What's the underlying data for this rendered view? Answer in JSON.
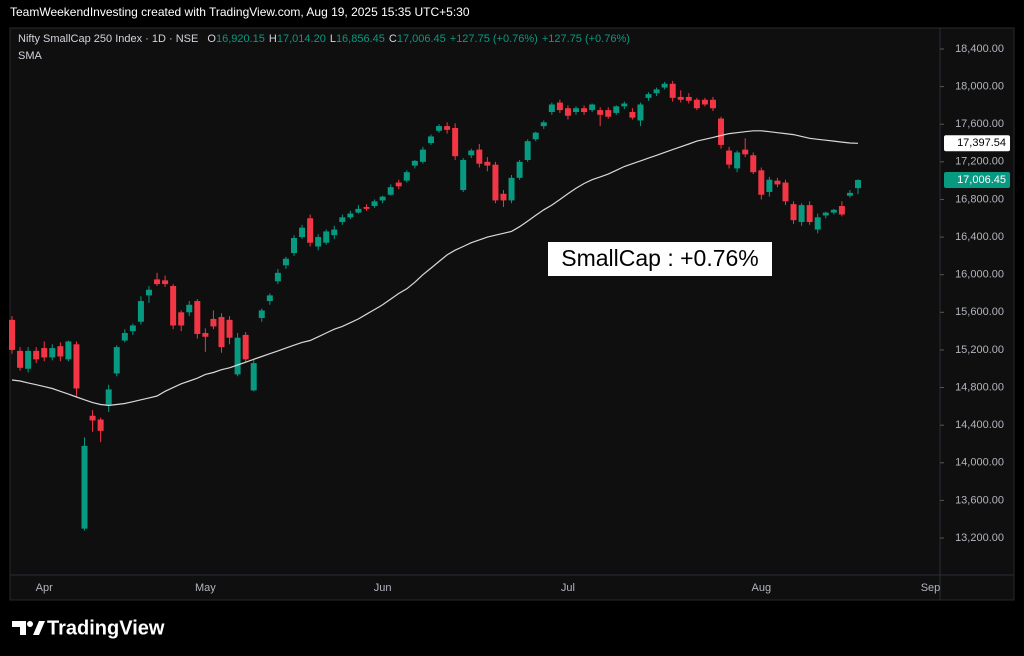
{
  "top_bar": "TeamWeekendInvesting created with TradingView.com, Aug 19, 2025 15:35 UTC+5:30",
  "header": {
    "symbol": "Nifty SmallCap 250 Index · 1D · NSE",
    "ohlc": [
      {
        "key": "O",
        "value": "16,920.15"
      },
      {
        "key": "H",
        "value": "17,014.20"
      },
      {
        "key": "L",
        "value": "16,856.45"
      },
      {
        "key": "C",
        "value": "17,006.45"
      }
    ],
    "changes": [
      "+127.75 (+0.76%)",
      "+127.75 (+0.76%)"
    ]
  },
  "logo": "TradingView",
  "chart_data": {
    "type": "candlestick",
    "up_color": "#089981",
    "down_color": "#f23645",
    "ylim": [
      12807,
      18623
    ],
    "yticks": [
      {
        "value": 13200,
        "label": "13,200.00"
      },
      {
        "value": 13600,
        "label": "13,600.00"
      },
      {
        "value": 14000,
        "label": "14,000.00"
      },
      {
        "value": 14400,
        "label": "14,400.00"
      },
      {
        "value": 14800,
        "label": "14,800.00"
      },
      {
        "value": 15200,
        "label": "15,200.00"
      },
      {
        "value": 15600,
        "label": "15,600.00"
      },
      {
        "value": 16000,
        "label": "16,000.00"
      },
      {
        "value": 16400,
        "label": "16,400.00"
      },
      {
        "value": 16800,
        "label": "16,800.00"
      },
      {
        "value": 17200,
        "label": "17,200.00"
      },
      {
        "value": 17600,
        "label": "17,600.00"
      },
      {
        "value": 18000,
        "label": "18,000.00"
      },
      {
        "value": 18400,
        "label": "18,400.00"
      }
    ],
    "categories": [
      null,
      null,
      null,
      null,
      "Apr",
      null,
      null,
      null,
      null,
      null,
      null,
      null,
      null,
      null,
      null,
      null,
      null,
      null,
      null,
      null,
      null,
      null,
      null,
      null,
      "May",
      null,
      null,
      null,
      null,
      null,
      null,
      null,
      null,
      null,
      null,
      null,
      null,
      null,
      null,
      null,
      null,
      null,
      null,
      null,
      null,
      null,
      "Jun",
      null,
      null,
      null,
      null,
      null,
      null,
      null,
      null,
      null,
      null,
      null,
      null,
      null,
      null,
      null,
      null,
      null,
      null,
      null,
      null,
      null,
      null,
      "Jul",
      null,
      null,
      null,
      null,
      null,
      null,
      null,
      null,
      null,
      null,
      null,
      null,
      null,
      null,
      null,
      null,
      null,
      null,
      null,
      null,
      null,
      null,
      null,
      "Aug",
      null,
      null,
      null,
      null,
      null,
      null,
      null,
      null,
      null,
      null,
      null,
      null,
      null,
      null,
      null,
      null,
      null,
      null,
      null,
      null,
      "Sep"
    ],
    "candles": [
      [
        15520,
        15560,
        15160,
        15200
      ],
      [
        15190,
        15230,
        14980,
        15010
      ],
      [
        15000,
        15230,
        14960,
        15190
      ],
      [
        15190,
        15230,
        15060,
        15100
      ],
      [
        15220,
        15290,
        15080,
        15120
      ],
      [
        15120,
        15260,
        15090,
        15220
      ],
      [
        15240,
        15280,
        15080,
        15130
      ],
      [
        15100,
        15300,
        15080,
        15290
      ],
      [
        15260,
        15290,
        14700,
        14790
      ],
      [
        13300,
        14270,
        13280,
        14180
      ],
      [
        14500,
        14560,
        14330,
        14450
      ],
      [
        14460,
        14480,
        14220,
        14340
      ],
      [
        14620,
        14830,
        14540,
        14780
      ],
      [
        14950,
        15250,
        14920,
        15230
      ],
      [
        15300,
        15420,
        15280,
        15380
      ],
      [
        15400,
        15480,
        15360,
        15460
      ],
      [
        15500,
        15770,
        15470,
        15720
      ],
      [
        15780,
        15880,
        15700,
        15840
      ],
      [
        15950,
        16020,
        15880,
        15900
      ],
      [
        15940,
        15990,
        15870,
        15900
      ],
      [
        15880,
        15900,
        15420,
        15460
      ],
      [
        15600,
        15620,
        15400,
        15460
      ],
      [
        15600,
        15720,
        15560,
        15680
      ],
      [
        15720,
        15740,
        15320,
        15370
      ],
      [
        15380,
        15430,
        15180,
        15340
      ],
      [
        15530,
        15620,
        15420,
        15450
      ],
      [
        15550,
        15590,
        15170,
        15230
      ],
      [
        15520,
        15560,
        15260,
        15330
      ],
      [
        14940,
        15380,
        14920,
        15330
      ],
      [
        15360,
        15390,
        15070,
        15100
      ],
      [
        14770,
        15100,
        14760,
        15060
      ],
      [
        15540,
        15640,
        15500,
        15620
      ],
      [
        15720,
        15800,
        15680,
        15780
      ],
      [
        15930,
        16060,
        15900,
        16020
      ],
      [
        16100,
        16190,
        16060,
        16170
      ],
      [
        16230,
        16420,
        16200,
        16390
      ],
      [
        16400,
        16530,
        16380,
        16500
      ],
      [
        16600,
        16640,
        16300,
        16340
      ],
      [
        16300,
        16430,
        16260,
        16400
      ],
      [
        16340,
        16480,
        16320,
        16460
      ],
      [
        16420,
        16520,
        16380,
        16480
      ],
      [
        16560,
        16640,
        16530,
        16610
      ],
      [
        16610,
        16680,
        16590,
        16650
      ],
      [
        16660,
        16740,
        16650,
        16700
      ],
      [
        16720,
        16750,
        16680,
        16700
      ],
      [
        16730,
        16800,
        16710,
        16780
      ],
      [
        16790,
        16840,
        16760,
        16830
      ],
      [
        16850,
        16960,
        16840,
        16930
      ],
      [
        16980,
        17010,
        16910,
        16940
      ],
      [
        17000,
        17110,
        16980,
        17090
      ],
      [
        17160,
        17220,
        17130,
        17210
      ],
      [
        17200,
        17360,
        17180,
        17330
      ],
      [
        17400,
        17490,
        17380,
        17470
      ],
      [
        17530,
        17600,
        17510,
        17580
      ],
      [
        17580,
        17620,
        17500,
        17540
      ],
      [
        17560,
        17610,
        17220,
        17260
      ],
      [
        16900,
        17240,
        16880,
        17220
      ],
      [
        17270,
        17340,
        17240,
        17320
      ],
      [
        17330,
        17390,
        17140,
        17180
      ],
      [
        17200,
        17250,
        17100,
        17160
      ],
      [
        17170,
        17200,
        16760,
        16790
      ],
      [
        16860,
        16900,
        16720,
        16790
      ],
      [
        16790,
        17060,
        16760,
        17030
      ],
      [
        17030,
        17220,
        17010,
        17200
      ],
      [
        17220,
        17440,
        17200,
        17420
      ],
      [
        17440,
        17520,
        17420,
        17510
      ],
      [
        17580,
        17640,
        17550,
        17620
      ],
      [
        17730,
        17830,
        17700,
        17810
      ],
      [
        17830,
        17860,
        17720,
        17750
      ],
      [
        17770,
        17800,
        17650,
        17690
      ],
      [
        17730,
        17790,
        17700,
        17770
      ],
      [
        17770,
        17800,
        17700,
        17730
      ],
      [
        17750,
        17820,
        17730,
        17810
      ],
      [
        17750,
        17780,
        17580,
        17700
      ],
      [
        17750,
        17780,
        17660,
        17680
      ],
      [
        17720,
        17800,
        17700,
        17790
      ],
      [
        17790,
        17840,
        17760,
        17820
      ],
      [
        17730,
        17770,
        17650,
        17670
      ],
      [
        17640,
        17830,
        17580,
        17810
      ],
      [
        17880,
        17940,
        17850,
        17920
      ],
      [
        17930,
        17990,
        17900,
        17970
      ],
      [
        17990,
        18050,
        17970,
        18030
      ],
      [
        18030,
        18060,
        17840,
        17880
      ],
      [
        17890,
        17960,
        17830,
        17860
      ],
      [
        17890,
        17930,
        17820,
        17850
      ],
      [
        17860,
        17880,
        17750,
        17770
      ],
      [
        17860,
        17880,
        17790,
        17810
      ],
      [
        17860,
        17890,
        17740,
        17770
      ],
      [
        17660,
        17680,
        17340,
        17380
      ],
      [
        17320,
        17360,
        17130,
        17170
      ],
      [
        17130,
        17320,
        17090,
        17300
      ],
      [
        17330,
        17450,
        17250,
        17280
      ],
      [
        17270,
        17300,
        17070,
        17090
      ],
      [
        17110,
        17140,
        16800,
        16850
      ],
      [
        16880,
        17040,
        16830,
        17010
      ],
      [
        17000,
        17030,
        16930,
        16960
      ],
      [
        16980,
        17010,
        16740,
        16780
      ],
      [
        16750,
        16780,
        16540,
        16580
      ],
      [
        16560,
        16760,
        16520,
        16740
      ],
      [
        16740,
        16780,
        16530,
        16560
      ],
      [
        16480,
        16650,
        16440,
        16610
      ],
      [
        16630,
        16670,
        16600,
        16660
      ],
      [
        16660,
        16700,
        16640,
        16690
      ],
      [
        16730,
        16780,
        16620,
        16640
      ],
      [
        16840,
        16900,
        16820,
        16870
      ],
      [
        16920.15,
        17014.2,
        16856.45,
        17006.45
      ],
      null,
      null,
      null,
      null,
      null,
      null,
      null,
      null,
      null
    ],
    "sma": {
      "name": "SMA",
      "color": "#d8d8d8",
      "values": [
        14880,
        14870,
        14850,
        14830,
        14810,
        14790,
        14760,
        14730,
        14700,
        14670,
        14640,
        14620,
        14610,
        14620,
        14630,
        14650,
        14670,
        14690,
        14710,
        14760,
        14800,
        14840,
        14870,
        14900,
        14940,
        14960,
        14990,
        15010,
        15040,
        15070,
        15100,
        15130,
        15160,
        15190,
        15220,
        15250,
        15280,
        15300,
        15340,
        15380,
        15420,
        15450,
        15490,
        15530,
        15580,
        15630,
        15680,
        15740,
        15800,
        15850,
        15920,
        16000,
        16070,
        16140,
        16210,
        16260,
        16300,
        16340,
        16370,
        16400,
        16420,
        16440,
        16460,
        16510,
        16570,
        16630,
        16690,
        16740,
        16800,
        16860,
        16920,
        16970,
        17010,
        17040,
        17070,
        17110,
        17150,
        17180,
        17210,
        17240,
        17270,
        17300,
        17330,
        17360,
        17390,
        17420,
        17440,
        17460,
        17480,
        17500,
        17510,
        17520,
        17530,
        17530,
        17520,
        17510,
        17500,
        17490,
        17470,
        17450,
        17440,
        17430,
        17420,
        17410,
        17400,
        17397.54,
        null,
        null,
        null,
        null,
        null,
        null,
        null,
        null,
        null
      ]
    },
    "price_labels": [
      {
        "value": 17397.54,
        "label": "17,397.54",
        "bg": "#ffffff",
        "fg": "#000000"
      },
      {
        "value": 17006.45,
        "label": "17,006.45",
        "bg": "#089981",
        "fg": "#ffffff"
      }
    ],
    "annotation": "SmallCap : +0.76%"
  }
}
